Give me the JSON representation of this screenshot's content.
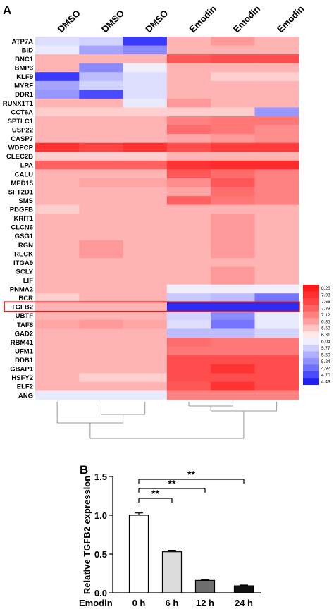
{
  "panel_a_label": "A",
  "panel_b_label": "B",
  "chart_data": [
    {
      "type": "heatmap",
      "columns": [
        "DMSO",
        "DMSO",
        "DMSO",
        "Emodin",
        "Emodin",
        "Emodin"
      ],
      "rows": [
        "ATP7A",
        "BID",
        "BNC1",
        "BMP3",
        "KLF9",
        "MYRF",
        "DDR1",
        "RUNX1T1",
        "CCT6A",
        "SPTLC1",
        "USP22",
        "CASP7",
        "WDPCP",
        "CLEC2B",
        "LPA",
        "CALU",
        "MED15",
        "SFT2D1",
        "SMS",
        "PDGFB",
        "KRIT1",
        "CLCN6",
        "GSG1",
        "RGN",
        "RECK",
        "ITGA9",
        "SCLY",
        "LIF",
        "PNMA2",
        "BCR",
        "TGFB2",
        "UBTF",
        "TAF8",
        "GAD2",
        "RBM41",
        "UFM1",
        "DDB1",
        "GBAP1",
        "HSFY2",
        "ELF2",
        "ANG"
      ],
      "values": [
        [
          5.9,
          5.8,
          4.6,
          6.7,
          6.9,
          6.7
        ],
        [
          6.0,
          5.4,
          5.2,
          6.7,
          6.7,
          6.7
        ],
        [
          6.7,
          6.7,
          6.7,
          7.5,
          7.6,
          7.6
        ],
        [
          6.7,
          5.2,
          6.1,
          6.7,
          6.7,
          6.7
        ],
        [
          4.6,
          5.6,
          5.9,
          6.7,
          6.5,
          6.5
        ],
        [
          5.4,
          5.8,
          5.9,
          6.7,
          6.7,
          6.7
        ],
        [
          5.3,
          4.7,
          5.9,
          6.7,
          6.7,
          6.7
        ],
        [
          6.7,
          6.7,
          6.0,
          6.9,
          6.7,
          6.7
        ],
        [
          6.5,
          6.5,
          6.5,
          6.5,
          6.5,
          5.3
        ],
        [
          6.7,
          6.7,
          6.7,
          7.1,
          7.2,
          7.2
        ],
        [
          6.7,
          6.7,
          6.7,
          7.3,
          7.2,
          7.0
        ],
        [
          6.7,
          6.7,
          6.7,
          6.8,
          6.9,
          7.0
        ],
        [
          7.9,
          7.7,
          7.9,
          7.6,
          7.8,
          7.8
        ],
        [
          6.5,
          6.5,
          6.5,
          6.7,
          6.7,
          6.7
        ],
        [
          7.4,
          7.4,
          7.4,
          7.9,
          8.0,
          8.0
        ],
        [
          6.7,
          6.7,
          6.7,
          7.5,
          7.3,
          7.1
        ],
        [
          6.7,
          6.8,
          6.8,
          7.0,
          7.5,
          7.1
        ],
        [
          6.7,
          6.7,
          6.7,
          6.8,
          7.3,
          7.1
        ],
        [
          6.7,
          6.7,
          6.7,
          7.4,
          7.2,
          7.1
        ],
        [
          6.5,
          6.7,
          6.7,
          6.7,
          6.7,
          6.7
        ],
        [
          6.7,
          6.7,
          6.7,
          6.7,
          6.9,
          6.7
        ],
        [
          6.7,
          6.7,
          6.7,
          6.7,
          6.9,
          6.7
        ],
        [
          6.7,
          6.7,
          6.7,
          6.7,
          6.9,
          6.7
        ],
        [
          6.7,
          6.9,
          6.7,
          6.7,
          6.9,
          6.7
        ],
        [
          6.7,
          6.9,
          6.7,
          6.7,
          6.9,
          6.7
        ],
        [
          6.7,
          6.7,
          6.7,
          6.7,
          6.7,
          6.7
        ],
        [
          6.7,
          6.7,
          6.7,
          6.7,
          6.9,
          6.7
        ],
        [
          6.7,
          6.7,
          6.7,
          6.7,
          6.9,
          6.7
        ],
        [
          6.7,
          6.7,
          6.7,
          6.1,
          6.1,
          6.1
        ],
        [
          6.5,
          6.7,
          6.7,
          5.7,
          5.6,
          5.0
        ],
        [
          6.7,
          6.7,
          6.7,
          4.5,
          4.5,
          4.5
        ],
        [
          6.7,
          6.7,
          6.7,
          5.8,
          5.2,
          6.0
        ],
        [
          6.8,
          6.9,
          6.8,
          5.9,
          5.0,
          6.0
        ],
        [
          6.7,
          6.7,
          6.7,
          5.6,
          5.6,
          5.8
        ],
        [
          6.7,
          6.7,
          6.7,
          7.3,
          7.2,
          7.2
        ],
        [
          6.7,
          6.7,
          6.7,
          7.2,
          7.2,
          7.2
        ],
        [
          6.7,
          6.7,
          6.7,
          7.6,
          7.6,
          7.6
        ],
        [
          6.7,
          6.7,
          6.7,
          7.6,
          7.9,
          7.6
        ],
        [
          6.7,
          6.5,
          6.5,
          7.6,
          7.6,
          7.6
        ],
        [
          6.7,
          6.7,
          6.7,
          7.5,
          7.9,
          7.6
        ],
        [
          6.0,
          6.0,
          6.0,
          7.1,
          7.1,
          7.1
        ]
      ],
      "highlighted_row": "TGFB2",
      "color_scale_ticks": [
        "8.20",
        "7.93",
        "7.66",
        "7.39",
        "7.12",
        "6.85",
        "6.58",
        "6.31",
        "6.04",
        "5.77",
        "5.50",
        "5.24",
        "4.97",
        "4.70",
        "4.43"
      ],
      "color_scale_colors": [
        "#ff1a1a",
        "#ff3030",
        "#ff4646",
        "#ff6262",
        "#ff8080",
        "#ff9e9e",
        "#ffc4c4",
        "#ffe8e8",
        "#eeeeff",
        "#d0d0ff",
        "#b0b0ff",
        "#9090ff",
        "#7070ff",
        "#4a4aff",
        "#2020f0"
      ],
      "color_range": [
        4.43,
        8.2
      ]
    },
    {
      "type": "bar",
      "ylabel": "Relative TGFB2 expression",
      "xlabel": "Emodin",
      "categories": [
        "0 h",
        "6 h",
        "12 h",
        "24 h"
      ],
      "values": [
        1.0,
        0.53,
        0.16,
        0.09
      ],
      "errors": [
        0.03,
        0.01,
        0.01,
        0.01
      ],
      "bar_colors": [
        "#ffffff",
        "#dcdcdc",
        "#6e6e6e",
        "#111111"
      ],
      "ylim": [
        0,
        1.5
      ],
      "yticks": [
        "0.0",
        "0.5",
        "1.0",
        "1.5"
      ],
      "significance": [
        {
          "from": "0 h",
          "to": "6 h",
          "label": "**"
        },
        {
          "from": "0 h",
          "to": "12 h",
          "label": "**"
        },
        {
          "from": "0 h",
          "to": "24 h",
          "label": "**"
        }
      ]
    }
  ]
}
